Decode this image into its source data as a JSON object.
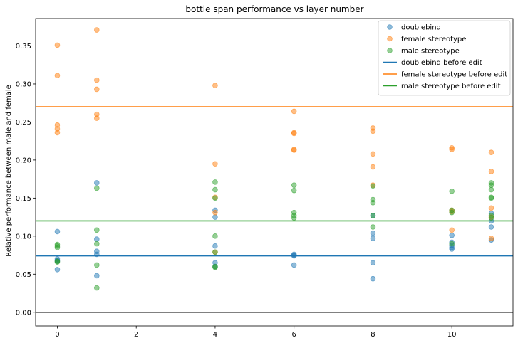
{
  "chart_data": {
    "type": "scatter",
    "title": "bottle span performance vs layer number",
    "xlabel": "",
    "ylabel": "Relative performance between male and female",
    "xlim": [
      -0.55,
      11.55
    ],
    "ylim": [
      -0.018,
      0.386
    ],
    "x_ticks": [
      0,
      2,
      4,
      6,
      8,
      10
    ],
    "y_ticks": [
      0.0,
      0.05,
      0.1,
      0.15,
      0.2,
      0.25,
      0.3,
      0.35
    ],
    "grid": false,
    "legend_position": "top-right",
    "series": [
      {
        "name": "doublebind",
        "kind": "scatter",
        "color": "#1f77b4",
        "points": [
          [
            0,
            0.106
          ],
          [
            0,
            0.07
          ],
          [
            0,
            0.068
          ],
          [
            0,
            0.067
          ],
          [
            0,
            0.056
          ],
          [
            1,
            0.17
          ],
          [
            1,
            0.096
          ],
          [
            1,
            0.08
          ],
          [
            1,
            0.076
          ],
          [
            1,
            0.048
          ],
          [
            4,
            0.134
          ],
          [
            4,
            0.125
          ],
          [
            4,
            0.087
          ],
          [
            4,
            0.065
          ],
          [
            4,
            0.06
          ],
          [
            6,
            0.076
          ],
          [
            6,
            0.075
          ],
          [
            6,
            0.074
          ],
          [
            6,
            0.062
          ],
          [
            8,
            0.127
          ],
          [
            8,
            0.104
          ],
          [
            8,
            0.097
          ],
          [
            8,
            0.065
          ],
          [
            8,
            0.044
          ],
          [
            10,
            0.101
          ],
          [
            10,
            0.092
          ],
          [
            10,
            0.088
          ],
          [
            10,
            0.085
          ],
          [
            10,
            0.083
          ],
          [
            11,
            0.13
          ],
          [
            11,
            0.12
          ],
          [
            11,
            0.112
          ],
          [
            11,
            0.095
          ]
        ]
      },
      {
        "name": "female stereotype",
        "kind": "scatter",
        "color": "#ff7f0e",
        "points": [
          [
            0,
            0.351
          ],
          [
            0,
            0.311
          ],
          [
            0,
            0.246
          ],
          [
            0,
            0.241
          ],
          [
            0,
            0.236
          ],
          [
            1,
            0.371
          ],
          [
            1,
            0.305
          ],
          [
            1,
            0.293
          ],
          [
            1,
            0.26
          ],
          [
            1,
            0.255
          ],
          [
            4,
            0.298
          ],
          [
            4,
            0.195
          ],
          [
            4,
            0.151
          ],
          [
            4,
            0.131
          ],
          [
            4,
            0.079
          ],
          [
            6,
            0.264
          ],
          [
            6,
            0.236
          ],
          [
            6,
            0.235
          ],
          [
            6,
            0.214
          ],
          [
            6,
            0.213
          ],
          [
            8,
            0.242
          ],
          [
            8,
            0.238
          ],
          [
            8,
            0.208
          ],
          [
            8,
            0.191
          ],
          [
            8,
            0.167
          ],
          [
            10,
            0.216
          ],
          [
            10,
            0.214
          ],
          [
            10,
            0.134
          ],
          [
            10,
            0.132
          ],
          [
            10,
            0.108
          ],
          [
            11,
            0.21
          ],
          [
            11,
            0.185
          ],
          [
            11,
            0.137
          ],
          [
            11,
            0.125
          ],
          [
            11,
            0.097
          ]
        ]
      },
      {
        "name": "male stereotype",
        "kind": "scatter",
        "color": "#2ca02c",
        "points": [
          [
            0,
            0.089
          ],
          [
            0,
            0.087
          ],
          [
            0,
            0.085
          ],
          [
            0,
            0.067
          ],
          [
            0,
            0.066
          ],
          [
            1,
            0.163
          ],
          [
            1,
            0.108
          ],
          [
            1,
            0.09
          ],
          [
            1,
            0.062
          ],
          [
            1,
            0.032
          ],
          [
            4,
            0.171
          ],
          [
            4,
            0.161
          ],
          [
            4,
            0.15
          ],
          [
            4,
            0.1
          ],
          [
            4,
            0.079
          ],
          [
            4,
            0.06
          ],
          [
            4,
            0.059
          ],
          [
            6,
            0.167
          ],
          [
            6,
            0.16
          ],
          [
            6,
            0.131
          ],
          [
            6,
            0.127
          ],
          [
            6,
            0.124
          ],
          [
            8,
            0.166
          ],
          [
            8,
            0.148
          ],
          [
            8,
            0.144
          ],
          [
            8,
            0.127
          ],
          [
            8,
            0.112
          ],
          [
            10,
            0.159
          ],
          [
            10,
            0.134
          ],
          [
            10,
            0.131
          ],
          [
            10,
            0.09
          ],
          [
            11,
            0.17
          ],
          [
            11,
            0.167
          ],
          [
            11,
            0.161
          ],
          [
            11,
            0.151
          ],
          [
            11,
            0.15
          ],
          [
            11,
            0.127
          ],
          [
            11,
            0.124
          ]
        ]
      },
      {
        "name": "doublebind before edit",
        "kind": "hline",
        "color": "#1f77b4",
        "value": 0.074
      },
      {
        "name": "female stereotype before edit",
        "kind": "hline",
        "color": "#ff7f0e",
        "value": 0.27
      },
      {
        "name": "male stereotype before edit",
        "kind": "hline",
        "color": "#2ca02c",
        "value": 0.12
      }
    ],
    "zero_line": {
      "value": 0.0,
      "color": "#000000"
    }
  }
}
